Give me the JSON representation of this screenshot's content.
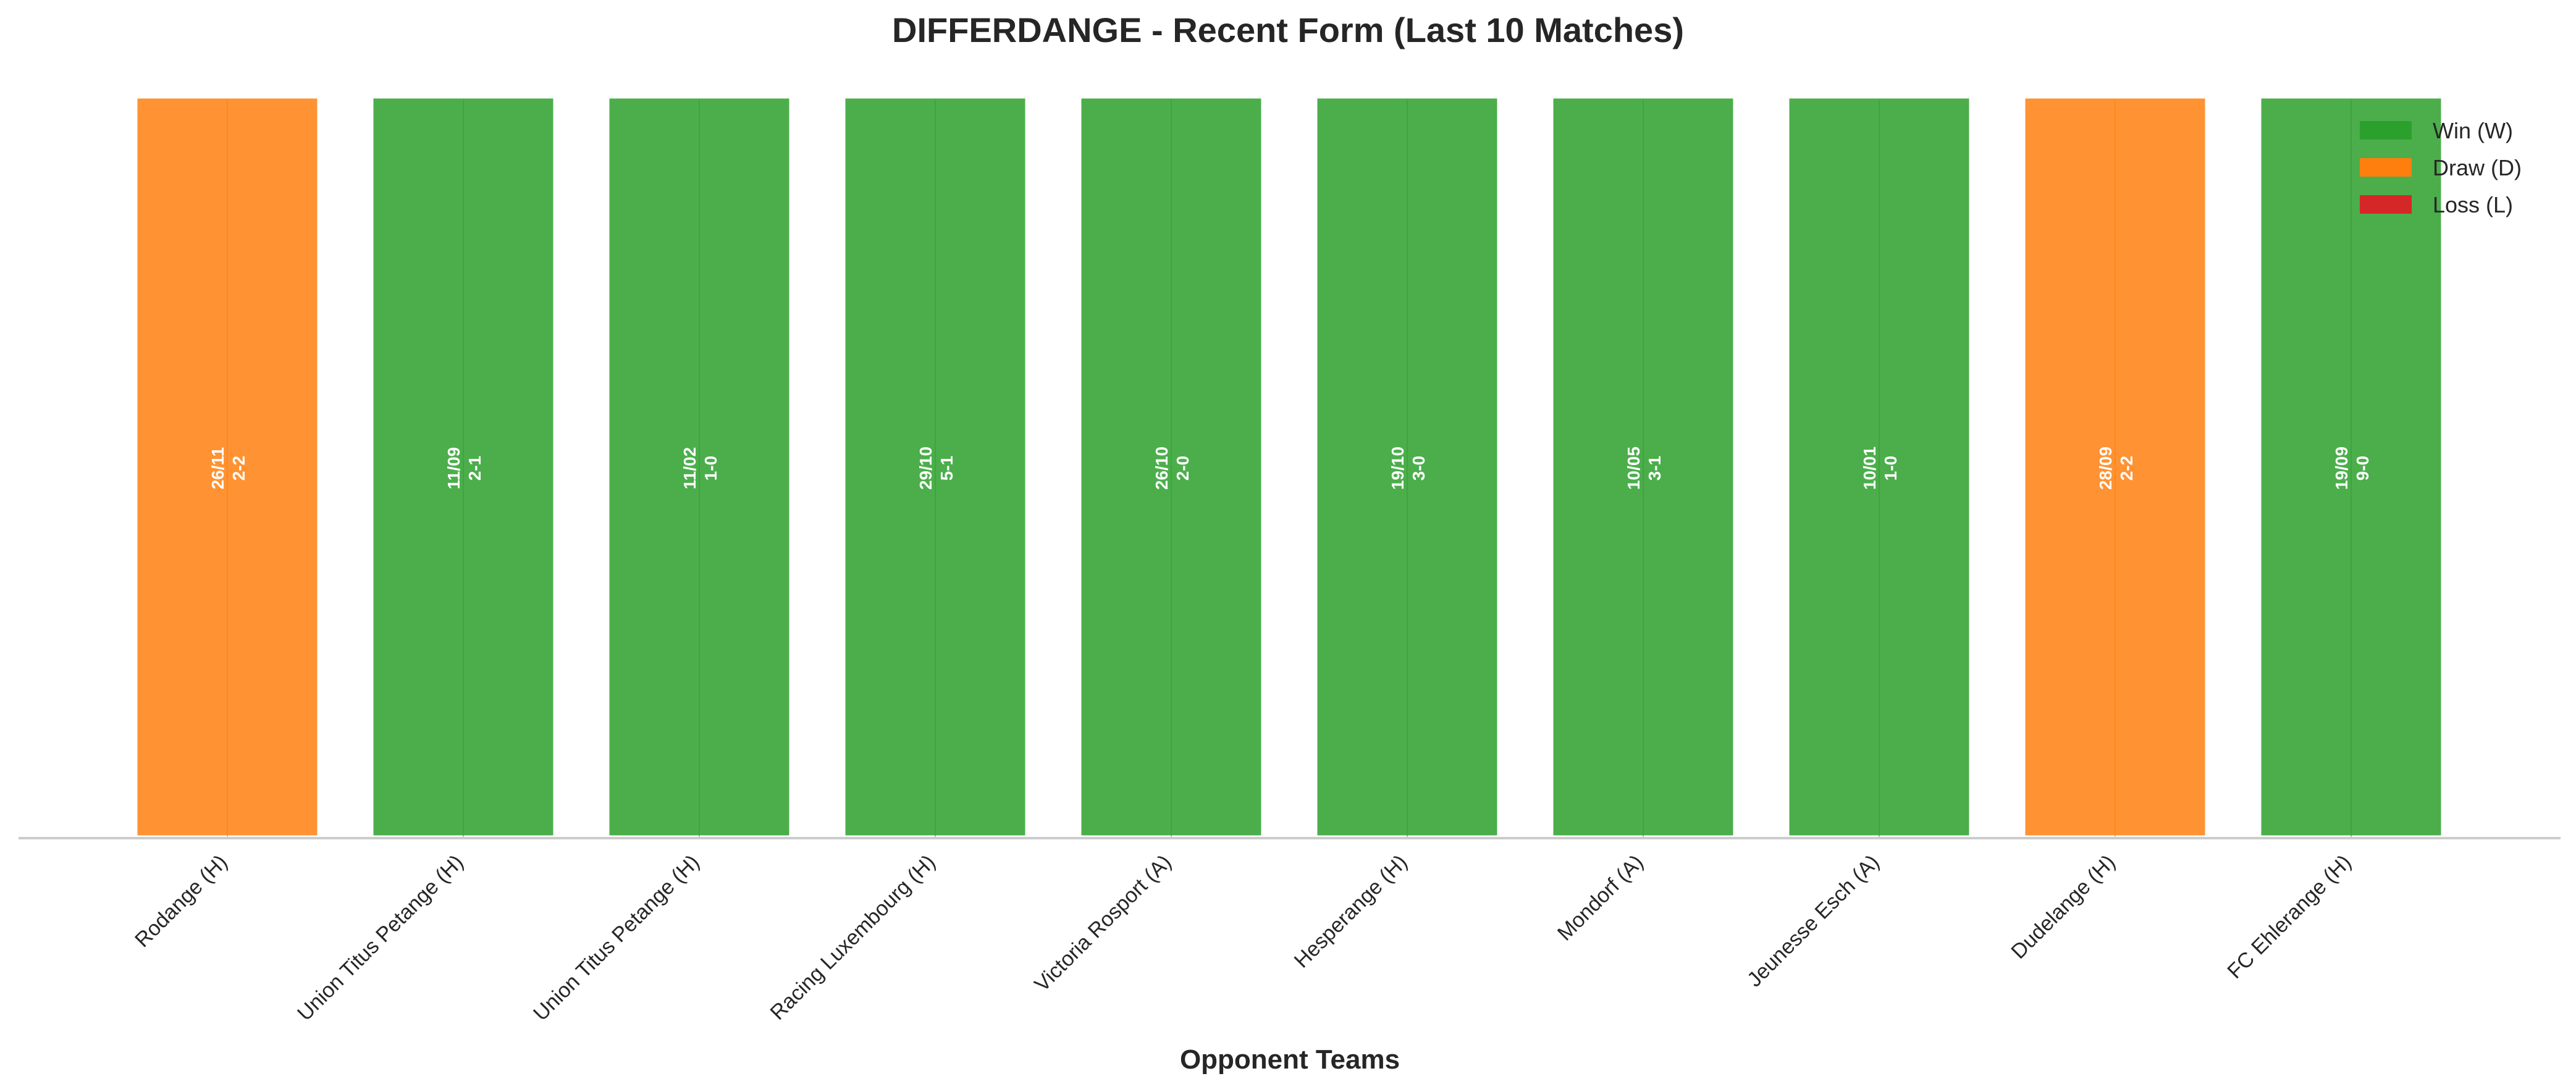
{
  "chart_data": {
    "type": "bar",
    "title": "DIFFERDANGE - Recent Form (Last 10 Matches)",
    "xlabel": "Opponent Teams",
    "ylabel": "",
    "grid": false,
    "legend_position": "top-right",
    "categories": [
      "Rodange (H)",
      "Union Titus Petange (H)",
      "Union Titus Petange (H)",
      "Racing Luxembourg (H)",
      "Victoria Rosport (A)",
      "Hesperange (H)",
      "Mondorf (A)",
      "Jeunesse Esch (A)",
      "Dudelange (H)",
      "FC Ehlerange (H)"
    ],
    "values": [
      1,
      1,
      1,
      1,
      1,
      1,
      1,
      1,
      1,
      1
    ],
    "results": [
      "D",
      "W",
      "W",
      "W",
      "W",
      "W",
      "W",
      "W",
      "D",
      "W"
    ],
    "dates": [
      "26/11",
      "11/09",
      "11/02",
      "29/10",
      "26/10",
      "19/10",
      "10/05",
      "10/01",
      "28/09",
      "19/09"
    ],
    "scores": [
      "2-2",
      "2-1",
      "1-0",
      "5-1",
      "2-0",
      "3-0",
      "3-1",
      "1-0",
      "2-2",
      "9-0"
    ],
    "legend": [
      {
        "key": "W",
        "label": "Win (W)",
        "color": "#2ca02c"
      },
      {
        "key": "D",
        "label": "Draw (D)",
        "color": "#ff7f0e"
      },
      {
        "key": "L",
        "label": "Loss (L)",
        "color": "#d62728"
      }
    ],
    "bar_opacity": 0.85
  }
}
